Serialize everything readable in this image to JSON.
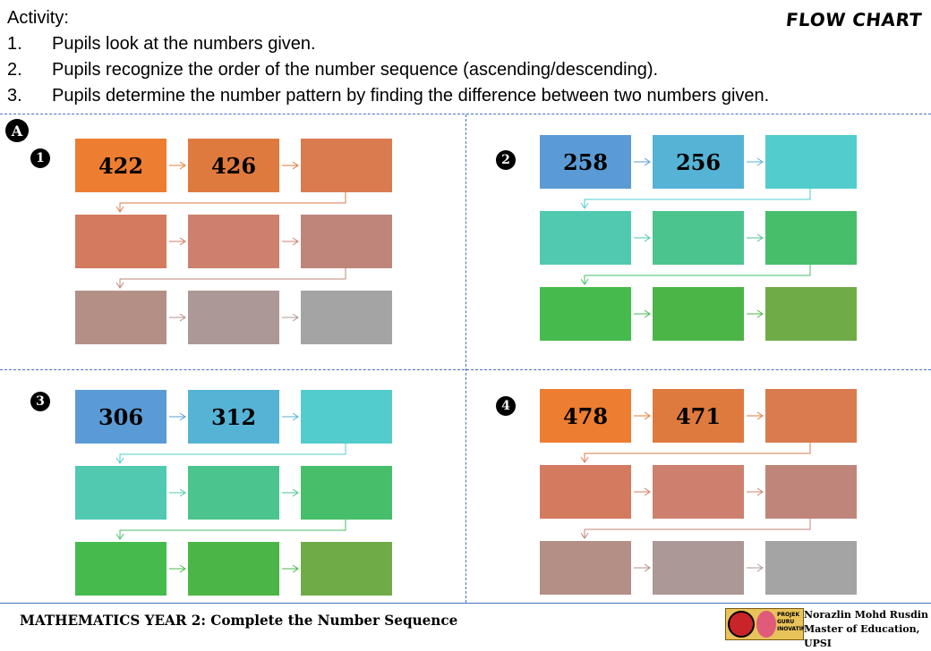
{
  "activity": {
    "title": "Activity:",
    "steps": [
      {
        "num": "1.",
        "text": "Pupils look at the numbers given."
      },
      {
        "num": "2.",
        "text": "Pupils recognize the order of the number sequence (ascending/descending)."
      },
      {
        "num": "3.",
        "text": "Pupils determine the number pattern by finding the difference between two numbers given."
      }
    ]
  },
  "tag": "FLOW CHART",
  "section_label": "A",
  "quadrants": [
    {
      "badge": "1",
      "values": [
        "422",
        "426",
        "",
        "",
        "",
        "",
        "",
        "",
        ""
      ],
      "colors": [
        "#ed7d31",
        "#df7a3e",
        "#d97b4e",
        "#d47a5f",
        "#cc806d",
        "#bf857a",
        "#b48f86",
        "#ac9896",
        "#a4a4a4"
      ]
    },
    {
      "badge": "2",
      "values": [
        "258",
        "256",
        "",
        "",
        "",
        "",
        "",
        "",
        ""
      ],
      "colors": [
        "#5b9bd5",
        "#55b3d6",
        "#52cccc",
        "#50c9b0",
        "#4cc48e",
        "#47be6a",
        "#45bb4d",
        "#4cb547",
        "#6fac47"
      ]
    },
    {
      "badge": "3",
      "values": [
        "306",
        "312",
        "",
        "",
        "",
        "",
        "",
        "",
        ""
      ],
      "colors": [
        "#5b9bd5",
        "#55b3d6",
        "#52cccc",
        "#50c9b0",
        "#4cc48e",
        "#47be6a",
        "#45bb4d",
        "#4cb547",
        "#6fac47"
      ]
    },
    {
      "badge": "4",
      "values": [
        "478",
        "471",
        "",
        "",
        "",
        "",
        "",
        "",
        ""
      ],
      "colors": [
        "#ed7d31",
        "#df7a3e",
        "#d97b4e",
        "#d47a5f",
        "#cc806d",
        "#bf857a",
        "#b48f86",
        "#ac9896",
        "#a4a4a4"
      ]
    }
  ],
  "footer": {
    "title": "MATHEMATICS YEAR 2: Complete the Number Sequence",
    "logo_lines": [
      "PROJEK",
      "GURU",
      "INOVATIF"
    ],
    "author_name": "Norazlin Mohd Rusdin",
    "author_affiliation": "Master of Education, UPSI"
  }
}
